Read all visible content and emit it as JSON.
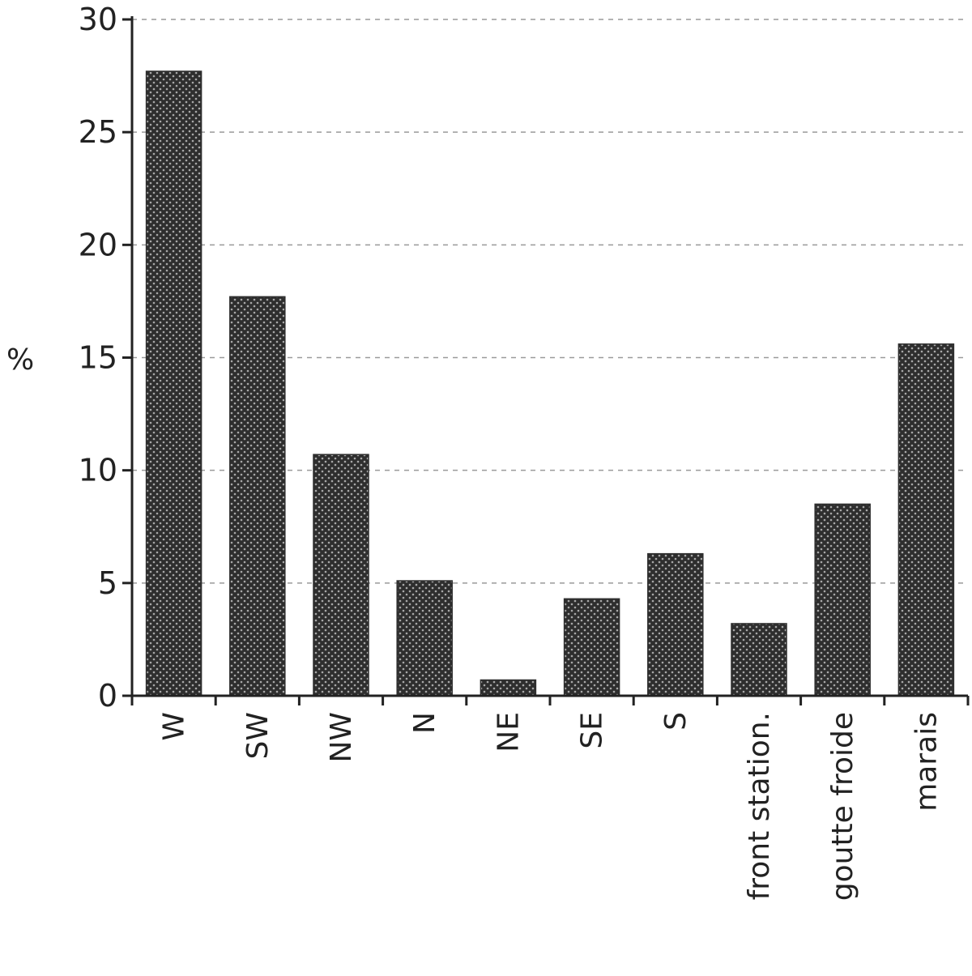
{
  "chart_data": {
    "type": "bar",
    "title": "",
    "xlabel": "",
    "ylabel": "%",
    "ylim": [
      0,
      30
    ],
    "yticks": [
      0,
      5,
      10,
      15,
      20,
      25,
      30
    ],
    "grid": "horizontal-dashed",
    "legend": "none",
    "categories": [
      "W",
      "SW",
      "NW",
      "N",
      "NE",
      "SE",
      "S",
      "front station.",
      "goutte froide",
      "marais"
    ],
    "values": [
      27.7,
      17.7,
      10.7,
      5.1,
      0.7,
      4.3,
      6.3,
      3.2,
      8.5,
      15.6
    ],
    "colors": {
      "bar_fill": "#2e2e2e",
      "bar_dot": "#9a9a9a",
      "axis": "#222222",
      "grid": "#9a9a9a"
    }
  }
}
